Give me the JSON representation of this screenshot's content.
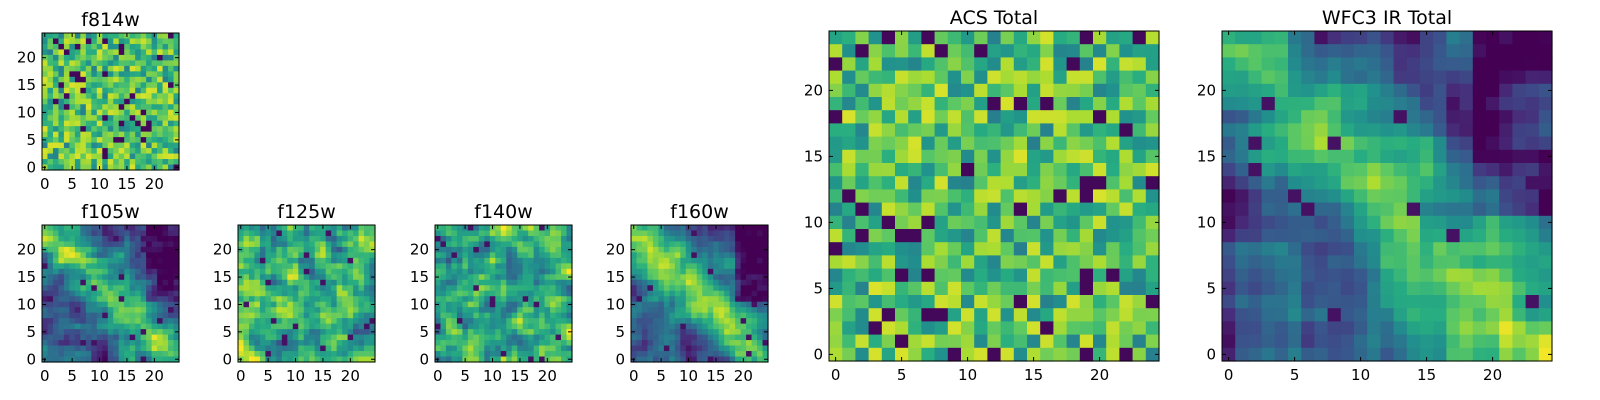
{
  "chart_data": [
    {
      "type": "heatmap",
      "title": "f814w",
      "xlabel": "",
      "ylabel": "",
      "xlim": [
        0,
        25
      ],
      "ylim": [
        0,
        25
      ],
      "xticks": [
        "0",
        "5",
        "10",
        "15",
        "20"
      ],
      "yticks": [
        "0",
        "5",
        "10",
        "15",
        "20"
      ],
      "grid": false,
      "legend": "none",
      "colormap": "viridis",
      "description_of_values": "25x25 pixel cutout; noisy, no visible structure",
      "pattern": "noise",
      "seed": 11
    },
    {
      "type": "heatmap",
      "title": "f105w",
      "xlim": [
        0,
        25
      ],
      "ylim": [
        0,
        25
      ],
      "xticks": [
        "0",
        "5",
        "10",
        "15",
        "20"
      ],
      "yticks": [
        "0",
        "5",
        "10",
        "15",
        "20"
      ],
      "grid": false,
      "colormap": "viridis",
      "pattern": "diagonal-band",
      "seed": 23
    },
    {
      "type": "heatmap",
      "title": "f125w",
      "xlim": [
        0,
        25
      ],
      "ylim": [
        0,
        25
      ],
      "xticks": [
        "0",
        "5",
        "10",
        "15",
        "20"
      ],
      "yticks": [
        "0",
        "5",
        "10",
        "15",
        "20"
      ],
      "grid": false,
      "colormap": "viridis",
      "pattern": "mottled",
      "seed": 37
    },
    {
      "type": "heatmap",
      "title": "f140w",
      "xlim": [
        0,
        25
      ],
      "ylim": [
        0,
        25
      ],
      "xticks": [
        "0",
        "5",
        "10",
        "15",
        "20"
      ],
      "yticks": [
        "0",
        "5",
        "10",
        "15",
        "20"
      ],
      "grid": false,
      "colormap": "viridis",
      "pattern": "mottled",
      "seed": 41
    },
    {
      "type": "heatmap",
      "title": "f160w",
      "xlim": [
        0,
        25
      ],
      "ylim": [
        0,
        25
      ],
      "xticks": [
        "0",
        "5",
        "10",
        "15",
        "20"
      ],
      "yticks": [
        "0",
        "5",
        "10",
        "15",
        "20"
      ],
      "grid": false,
      "colormap": "viridis",
      "pattern": "diagonal-band",
      "seed": 53
    },
    {
      "type": "heatmap",
      "title": "ACS Total",
      "xlim": [
        0,
        25
      ],
      "ylim": [
        0,
        25
      ],
      "xticks": [
        "0",
        "5",
        "10",
        "15",
        "20"
      ],
      "yticks": [
        "0",
        "5",
        "10",
        "15",
        "20"
      ],
      "grid": false,
      "colormap": "viridis",
      "pattern": "noise",
      "seed": 67
    },
    {
      "type": "heatmap",
      "title": "WFC3 IR Total",
      "xlim": [
        0,
        25
      ],
      "ylim": [
        0,
        25
      ],
      "xticks": [
        "0",
        "5",
        "10",
        "15",
        "20"
      ],
      "yticks": [
        "0",
        "5",
        "10",
        "15",
        "20"
      ],
      "grid": false,
      "colormap": "viridis",
      "pattern": "diagonal-band-smooth",
      "seed": 79
    }
  ],
  "colors": {
    "viridis": [
      "#440154",
      "#3b528b",
      "#21918c",
      "#5ec962",
      "#fde725"
    ],
    "axis": "#000000",
    "background": "#ffffff"
  }
}
